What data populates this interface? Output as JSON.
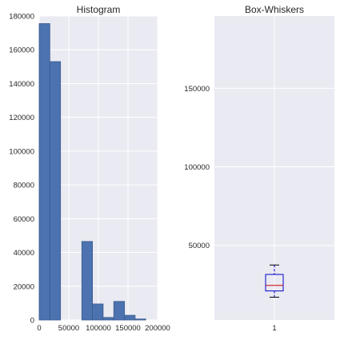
{
  "chart_data": [
    {
      "type": "bar",
      "title": "Histogram",
      "bins": [
        {
          "start": 0,
          "end": 18000,
          "count": 175500
        },
        {
          "start": 18000,
          "end": 36000,
          "count": 153000
        },
        {
          "start": 36000,
          "end": 54000,
          "count": 0
        },
        {
          "start": 54000,
          "end": 72000,
          "count": 0
        },
        {
          "start": 72000,
          "end": 90000,
          "count": 46500
        },
        {
          "start": 90000,
          "end": 108000,
          "count": 9500
        },
        {
          "start": 108000,
          "end": 126000,
          "count": 1500
        },
        {
          "start": 126000,
          "end": 144000,
          "count": 11000
        },
        {
          "start": 144000,
          "end": 162000,
          "count": 2800
        },
        {
          "start": 162000,
          "end": 180000,
          "count": 600
        }
      ],
      "xlim": [
        0,
        200000
      ],
      "ylim": [
        0,
        180000
      ],
      "xticks": [
        0,
        50000,
        100000,
        150000,
        200000
      ],
      "yticks": [
        0,
        20000,
        40000,
        60000,
        80000,
        100000,
        120000,
        140000,
        160000,
        180000
      ],
      "bar_color": "#4c72b0",
      "grid": true
    },
    {
      "type": "box",
      "title": "Box-Whiskers",
      "category": "1",
      "whisker_low": 17000,
      "q1": 21000,
      "median": 24500,
      "q3": 31500,
      "whisker_high": 37500,
      "ylim": [
        2500,
        196000
      ],
      "yticks": [
        50000,
        100000,
        150000
      ],
      "box_color": "#0000cc",
      "median_color": "#cc0000",
      "grid": true
    }
  ]
}
